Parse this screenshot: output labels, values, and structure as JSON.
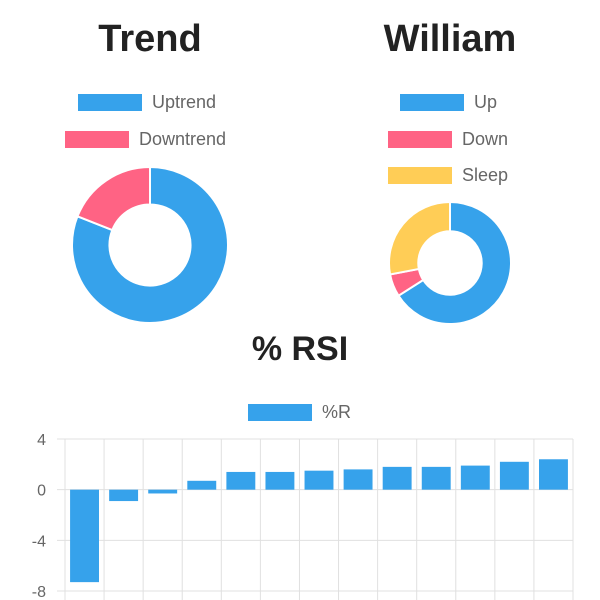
{
  "colors": {
    "blue": "#36a2eb",
    "pink": "#ff6384",
    "yellow": "#ffcd56",
    "grid": "#e0e0e0"
  },
  "chart_data": [
    {
      "type": "pie",
      "title": "Trend",
      "labels": [
        "Uptrend",
        "Downtrend"
      ],
      "values": [
        81,
        19
      ],
      "colors": [
        "#36a2eb",
        "#ff6384"
      ]
    },
    {
      "type": "pie",
      "title": "William",
      "labels": [
        "Up",
        "Down",
        "Sleep"
      ],
      "values": [
        66,
        6,
        28
      ],
      "colors": [
        "#36a2eb",
        "#ff6384",
        "#ffcd56"
      ]
    },
    {
      "type": "bar",
      "title": "% RSI",
      "series": [
        {
          "name": "%R",
          "values": [
            -7.3,
            -0.9,
            -0.3,
            0.7,
            1.4,
            1.4,
            1.5,
            1.6,
            1.8,
            1.8,
            1.9,
            2.2,
            2.4
          ]
        }
      ],
      "categories": [
        "",
        "",
        "",
        "",
        "",
        "",
        "",
        "",
        "",
        "",
        "",
        "",
        ""
      ],
      "ylim": [
        -8,
        4
      ],
      "yticks": [
        "4",
        "0",
        "-4",
        "-8"
      ],
      "grid": true,
      "legend": "top-center"
    }
  ]
}
